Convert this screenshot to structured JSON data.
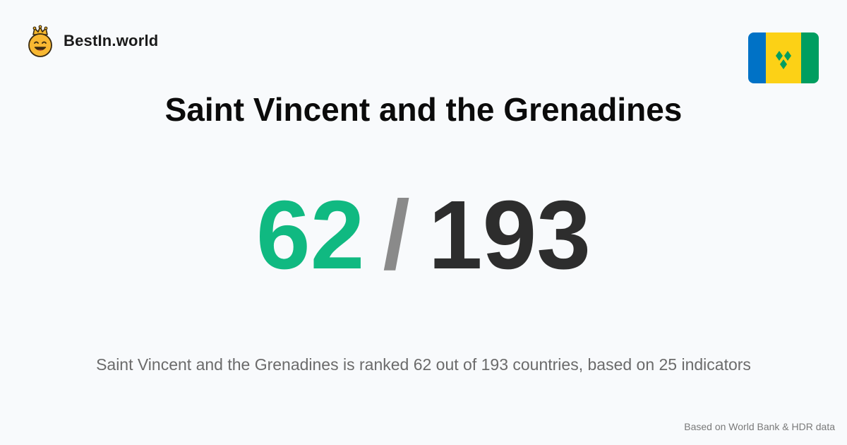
{
  "brand": {
    "name": "BestIn.world",
    "logo_icon": "crowned-smiley-icon"
  },
  "country": {
    "name": "Saint Vincent and the Grenadines",
    "flag_icon": "saint-vincent-grenadines-flag-icon",
    "flag_colors": {
      "blue": "#0072c6",
      "yellow": "#fcd116",
      "green": "#009e60"
    }
  },
  "ranking": {
    "rank": "62",
    "separator": "/",
    "total": "193",
    "rank_color": "#10b981",
    "separator_color": "#8a8a8a",
    "total_color": "#2d2d2d"
  },
  "description": "Saint Vincent and the Grenadines is ranked 62 out of 193 countries, based on 25 indicators",
  "source_note": "Based on World Bank & HDR data"
}
